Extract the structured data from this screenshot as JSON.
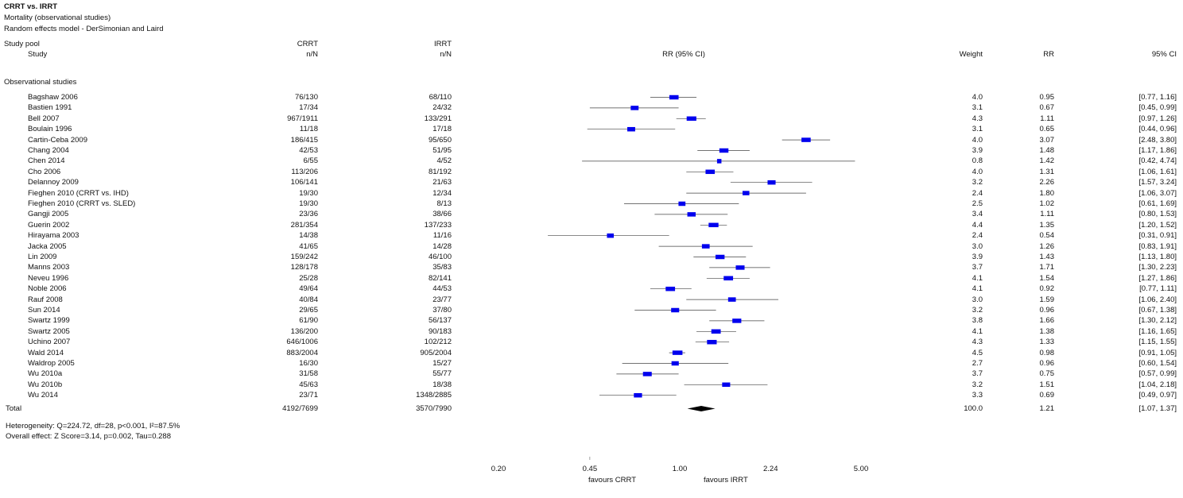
{
  "header": {
    "title": "CRRT vs. IRRT",
    "subtitle": "Mortality (observational studies)",
    "model": "Random effects model - DerSimonian and Laird",
    "pool_label": "Study pool",
    "study_label": "Study",
    "crrt_label": "CRRT",
    "crrt_sub": "n/N",
    "irrt_label": "IRRT",
    "irrt_sub": "n/N",
    "rr_ci_label": "RR (95% CI)",
    "weight_label": "Weight",
    "rr_label": "RR",
    "ci_label": "95% CI"
  },
  "group_label": "Observational studies",
  "footer": {
    "heterogeneity": "Heterogeneity: Q=224.72, df=28, p<0.001, I²=87.5%",
    "overall": "Overall effect: Z Score=3.14, p=0.002, Tau=0.288",
    "favours_left": "favours CRRT",
    "favours_right": "favours IRRT"
  },
  "chart_data": {
    "type": "forest",
    "x_scale": "log",
    "x_ticks": [
      "0.20",
      "0.45",
      "1.00",
      "2.24",
      "5.00"
    ],
    "x_tick_values": [
      0.2,
      0.45,
      1.0,
      2.24,
      5.0
    ],
    "xlim": [
      0.2,
      5.0
    ],
    "box_color": "#0000ee",
    "studies": [
      {
        "name": "Bagshaw 2006",
        "crrt": "76/130",
        "irrt": "68/110",
        "weight": "4.0",
        "rr": "0.95",
        "ci": "[0.77, 1.16]",
        "rr_val": 0.95,
        "lo": 0.77,
        "hi": 1.16,
        "w": 4.0
      },
      {
        "name": "Bastien 1991",
        "crrt": "17/34",
        "irrt": "24/32",
        "weight": "3.1",
        "rr": "0.67",
        "ci": "[0.45, 0.99]",
        "rr_val": 0.67,
        "lo": 0.45,
        "hi": 0.99,
        "w": 3.1
      },
      {
        "name": "Bell 2007",
        "crrt": "967/1911",
        "irrt": "133/291",
        "weight": "4.3",
        "rr": "1.11",
        "ci": "[0.97, 1.26]",
        "rr_val": 1.11,
        "lo": 0.97,
        "hi": 1.26,
        "w": 4.3
      },
      {
        "name": "Boulain 1996",
        "crrt": "11/18",
        "irrt": "17/18",
        "weight": "3.1",
        "rr": "0.65",
        "ci": "[0.44, 0.96]",
        "rr_val": 0.65,
        "lo": 0.44,
        "hi": 0.96,
        "w": 3.1
      },
      {
        "name": "Cartin-Ceba 2009",
        "crrt": "186/415",
        "irrt": "95/650",
        "weight": "4.0",
        "rr": "3.07",
        "ci": "[2.48, 3.80]",
        "rr_val": 3.07,
        "lo": 2.48,
        "hi": 3.8,
        "w": 4.0
      },
      {
        "name": "Chang 2004",
        "crrt": "42/53",
        "irrt": "51/95",
        "weight": "3.9",
        "rr": "1.48",
        "ci": "[1.17, 1.86]",
        "rr_val": 1.48,
        "lo": 1.17,
        "hi": 1.86,
        "w": 3.9
      },
      {
        "name": "Chen 2014",
        "crrt": "6/55",
        "irrt": "4/52",
        "weight": "0.8",
        "rr": "1.42",
        "ci": "[0.42, 4.74]",
        "rr_val": 1.42,
        "lo": 0.42,
        "hi": 4.74,
        "w": 0.8
      },
      {
        "name": "Cho 2006",
        "crrt": "113/206",
        "irrt": "81/192",
        "weight": "4.0",
        "rr": "1.31",
        "ci": "[1.06, 1.61]",
        "rr_val": 1.31,
        "lo": 1.06,
        "hi": 1.61,
        "w": 4.0
      },
      {
        "name": "Delannoy 2009",
        "crrt": "106/141",
        "irrt": "21/63",
        "weight": "3.2",
        "rr": "2.26",
        "ci": "[1.57, 3.24]",
        "rr_val": 2.26,
        "lo": 1.57,
        "hi": 3.24,
        "w": 3.2
      },
      {
        "name": "Fieghen 2010 (CRRT vs. IHD)",
        "crrt": "19/30",
        "irrt": "12/34",
        "weight": "2.4",
        "rr": "1.80",
        "ci": "[1.06, 3.07]",
        "rr_val": 1.8,
        "lo": 1.06,
        "hi": 3.07,
        "w": 2.4
      },
      {
        "name": "Fieghen 2010 (CRRT vs. SLED)",
        "crrt": "19/30",
        "irrt": "8/13",
        "weight": "2.5",
        "rr": "1.02",
        "ci": "[0.61, 1.69]",
        "rr_val": 1.02,
        "lo": 0.61,
        "hi": 1.69,
        "w": 2.5
      },
      {
        "name": "Gangji 2005",
        "crrt": "23/36",
        "irrt": "38/66",
        "weight": "3.4",
        "rr": "1.11",
        "ci": "[0.80, 1.53]",
        "rr_val": 1.11,
        "lo": 0.8,
        "hi": 1.53,
        "w": 3.4
      },
      {
        "name": "Guerin 2002",
        "crrt": "281/354",
        "irrt": "137/233",
        "weight": "4.4",
        "rr": "1.35",
        "ci": "[1.20, 1.52]",
        "rr_val": 1.35,
        "lo": 1.2,
        "hi": 1.52,
        "w": 4.4
      },
      {
        "name": "Hirayama 2003",
        "crrt": "14/38",
        "irrt": "11/16",
        "weight": "2.4",
        "rr": "0.54",
        "ci": "[0.31, 0.91]",
        "rr_val": 0.54,
        "lo": 0.31,
        "hi": 0.91,
        "w": 2.4
      },
      {
        "name": "Jacka 2005",
        "crrt": "41/65",
        "irrt": "14/28",
        "weight": "3.0",
        "rr": "1.26",
        "ci": "[0.83, 1.91]",
        "rr_val": 1.26,
        "lo": 0.83,
        "hi": 1.91,
        "w": 3.0
      },
      {
        "name": "Lin 2009",
        "crrt": "159/242",
        "irrt": "46/100",
        "weight": "3.9",
        "rr": "1.43",
        "ci": "[1.13, 1.80]",
        "rr_val": 1.43,
        "lo": 1.13,
        "hi": 1.8,
        "w": 3.9
      },
      {
        "name": "Manns 2003",
        "crrt": "128/178",
        "irrt": "35/83",
        "weight": "3.7",
        "rr": "1.71",
        "ci": "[1.30, 2.23]",
        "rr_val": 1.71,
        "lo": 1.3,
        "hi": 2.23,
        "w": 3.7
      },
      {
        "name": "Neveu 1996",
        "crrt": "25/28",
        "irrt": "82/141",
        "weight": "4.1",
        "rr": "1.54",
        "ci": "[1.27, 1.86]",
        "rr_val": 1.54,
        "lo": 1.27,
        "hi": 1.86,
        "w": 4.1
      },
      {
        "name": "Noble 2006",
        "crrt": "49/64",
        "irrt": "44/53",
        "weight": "4.1",
        "rr": "0.92",
        "ci": "[0.77, 1.11]",
        "rr_val": 0.92,
        "lo": 0.77,
        "hi": 1.11,
        "w": 4.1
      },
      {
        "name": "Rauf 2008",
        "crrt": "40/84",
        "irrt": "23/77",
        "weight": "3.0",
        "rr": "1.59",
        "ci": "[1.06, 2.40]",
        "rr_val": 1.59,
        "lo": 1.06,
        "hi": 2.4,
        "w": 3.0
      },
      {
        "name": "Sun 2014",
        "crrt": "29/65",
        "irrt": "37/80",
        "weight": "3.2",
        "rr": "0.96",
        "ci": "[0.67, 1.38]",
        "rr_val": 0.96,
        "lo": 0.67,
        "hi": 1.38,
        "w": 3.2
      },
      {
        "name": "Swartz 1999",
        "crrt": "61/90",
        "irrt": "56/137",
        "weight": "3.8",
        "rr": "1.66",
        "ci": "[1.30, 2.12]",
        "rr_val": 1.66,
        "lo": 1.3,
        "hi": 2.12,
        "w": 3.8
      },
      {
        "name": "Swartz 2005",
        "crrt": "136/200",
        "irrt": "90/183",
        "weight": "4.1",
        "rr": "1.38",
        "ci": "[1.16, 1.65]",
        "rr_val": 1.38,
        "lo": 1.16,
        "hi": 1.65,
        "w": 4.1
      },
      {
        "name": "Uchino 2007",
        "crrt": "646/1006",
        "irrt": "102/212",
        "weight": "4.3",
        "rr": "1.33",
        "ci": "[1.15, 1.55]",
        "rr_val": 1.33,
        "lo": 1.15,
        "hi": 1.55,
        "w": 4.3
      },
      {
        "name": "Wald 2014",
        "crrt": "883/2004",
        "irrt": "905/2004",
        "weight": "4.5",
        "rr": "0.98",
        "ci": "[0.91, 1.05]",
        "rr_val": 0.98,
        "lo": 0.91,
        "hi": 1.05,
        "w": 4.5
      },
      {
        "name": "Waldrop 2005",
        "crrt": "16/30",
        "irrt": "15/27",
        "weight": "2.7",
        "rr": "0.96",
        "ci": "[0.60, 1.54]",
        "rr_val": 0.96,
        "lo": 0.6,
        "hi": 1.54,
        "w": 2.7
      },
      {
        "name": "Wu 2010a",
        "crrt": "31/58",
        "irrt": "55/77",
        "weight": "3.7",
        "rr": "0.75",
        "ci": "[0.57, 0.99]",
        "rr_val": 0.75,
        "lo": 0.57,
        "hi": 0.99,
        "w": 3.7
      },
      {
        "name": "Wu 2010b",
        "crrt": "45/63",
        "irrt": "18/38",
        "weight": "3.2",
        "rr": "1.51",
        "ci": "[1.04, 2.18]",
        "rr_val": 1.51,
        "lo": 1.04,
        "hi": 2.18,
        "w": 3.2
      },
      {
        "name": "Wu 2014",
        "crrt": "23/71",
        "irrt": "1348/2885",
        "weight": "3.3",
        "rr": "0.69",
        "ci": "[0.49, 0.97]",
        "rr_val": 0.69,
        "lo": 0.49,
        "hi": 0.97,
        "w": 3.3
      }
    ],
    "total": {
      "name": "Total",
      "crrt": "4192/7699",
      "irrt": "3570/7990",
      "weight": "100.0",
      "rr": "1.21",
      "ci": "[1.07, 1.37]",
      "rr_val": 1.21,
      "lo": 1.07,
      "hi": 1.37
    }
  }
}
